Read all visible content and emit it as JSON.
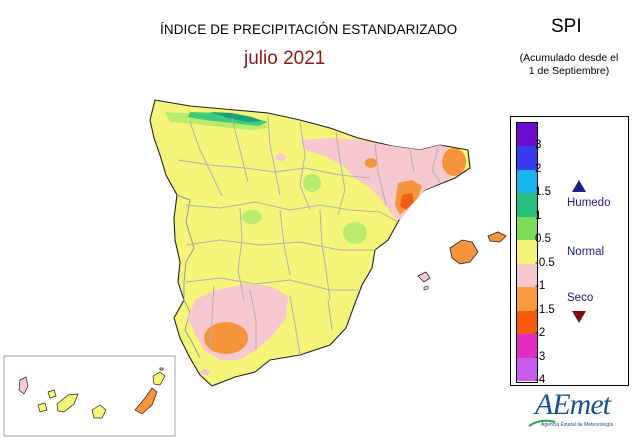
{
  "header": {
    "title": "ÍNDICE DE PRECIPITACIÓN ESTANDARIZADO",
    "month": "julio 2021",
    "index": "SPI",
    "accumulated_line1": "(Acumulado desde el",
    "accumulated_line2": "1 de Septiembre)"
  },
  "legend": {
    "tick_labels": [
      "3",
      "2",
      "1.5",
      "1",
      "0.5",
      "-0.5",
      "-1",
      "-1.5",
      "-2",
      "-3",
      "-4"
    ],
    "bands": [
      {
        "color": "#6a0dcc"
      },
      {
        "color": "#3a3af0"
      },
      {
        "color": "#19b4f0"
      },
      {
        "color": "#22c07a"
      },
      {
        "color": "#7ed957"
      },
      {
        "color": "#f5f57a"
      },
      {
        "color": "#f7c8cf"
      },
      {
        "color": "#f79b3c"
      },
      {
        "color": "#f45b0c"
      },
      {
        "color": "#e02cc0"
      },
      {
        "color": "#c85cf0"
      }
    ],
    "classes": {
      "wet": "Humedo",
      "normal": "Normal",
      "dry": "Seco"
    },
    "wet_arrow_color": "#1a237e",
    "dry_arrow_color": "#7b0f0f"
  },
  "logo": {
    "text": "AEmet",
    "subtitle": "Agencia Estatal de Meteorología"
  },
  "colors": {
    "normal_yellow": "#f5f57a",
    "light_green": "#b8ec6e",
    "green": "#3ecb7c",
    "dark_green": "#1aa07a",
    "pink": "#f7c8cf",
    "orange": "#f5943a",
    "deep_orange": "#f06010",
    "province_border": "#b0b0b0",
    "outline": "#222222"
  }
}
